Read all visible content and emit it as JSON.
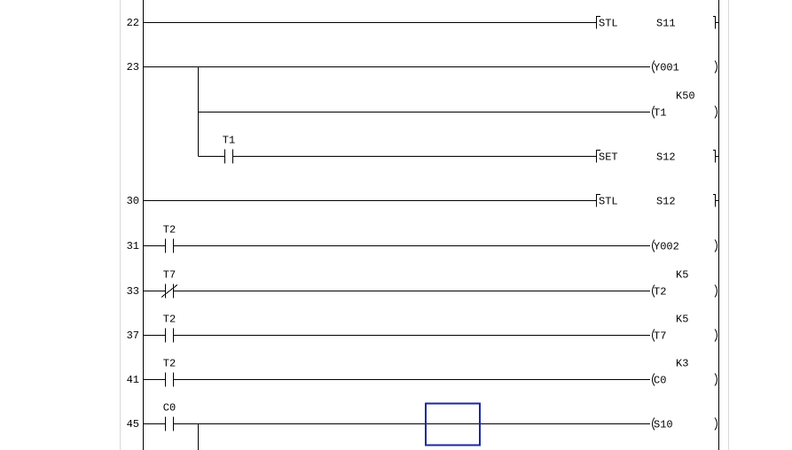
{
  "ladder": {
    "rungs": [
      {
        "step": "22",
        "rows": [
          {
            "contacts": [],
            "output": {
              "kind": "instr",
              "op": "STL",
              "arg": "S11"
            }
          }
        ]
      },
      {
        "step": "23",
        "rows": [
          {
            "contacts": [],
            "output": {
              "kind": "coil",
              "op": "Y001"
            }
          },
          {
            "contacts": [],
            "output": {
              "kind": "coil",
              "op": "T1",
              "setting": "K50"
            },
            "branch": true
          },
          {
            "contacts": [
              {
                "label": "T1",
                "type": "NO"
              }
            ],
            "output": {
              "kind": "instr",
              "op": "SET",
              "arg": "S12"
            },
            "branch": true
          }
        ]
      },
      {
        "step": "30",
        "rows": [
          {
            "contacts": [],
            "output": {
              "kind": "instr",
              "op": "STL",
              "arg": "S12"
            }
          }
        ]
      },
      {
        "step": "31",
        "rows": [
          {
            "contacts": [
              {
                "label": "T2",
                "type": "NO"
              }
            ],
            "output": {
              "kind": "coil",
              "op": "Y002"
            }
          }
        ]
      },
      {
        "step": "33",
        "rows": [
          {
            "contacts": [
              {
                "label": "T7",
                "type": "NC"
              }
            ],
            "output": {
              "kind": "coil",
              "op": "T2",
              "setting": "K5"
            }
          }
        ]
      },
      {
        "step": "37",
        "rows": [
          {
            "contacts": [
              {
                "label": "T2",
                "type": "NO"
              }
            ],
            "output": {
              "kind": "coil",
              "op": "T7",
              "setting": "K5"
            }
          }
        ]
      },
      {
        "step": "41",
        "rows": [
          {
            "contacts": [
              {
                "label": "T2",
                "type": "NO"
              }
            ],
            "output": {
              "kind": "coil",
              "op": "C0",
              "setting": "K3"
            }
          }
        ]
      },
      {
        "step": "45",
        "rows": [
          {
            "contacts": [
              {
                "label": "C0",
                "type": "NO"
              }
            ],
            "output": {
              "kind": "coil",
              "op": "S10"
            },
            "branch_down": true
          }
        ]
      }
    ],
    "cursor_color": "#1a2a9c"
  }
}
